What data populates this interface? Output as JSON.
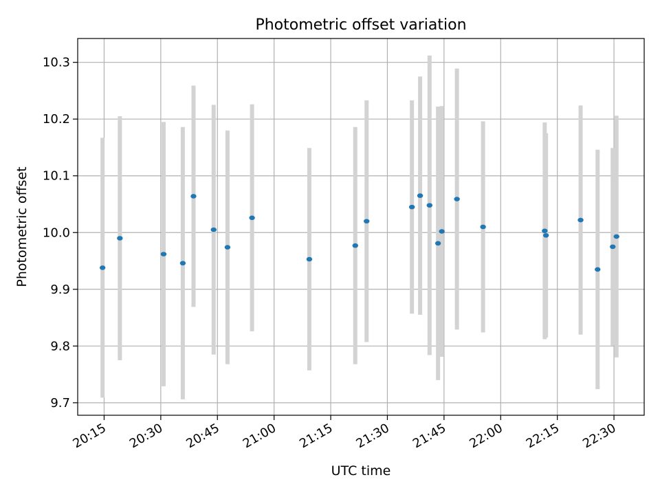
{
  "chart_data": {
    "type": "scatter",
    "title": "Photometric offset variation",
    "xlabel": "UTC time",
    "ylabel": "Photometric offset",
    "x_tick_labels": [
      "20:15",
      "20:30",
      "20:45",
      "21:00",
      "21:15",
      "21:30",
      "21:45",
      "22:00",
      "22:15",
      "22:30"
    ],
    "y_tick_labels": [
      "9.7",
      "9.8",
      "9.9",
      "10.0",
      "10.1",
      "10.2",
      "10.3"
    ],
    "x_ticks_minutes": [
      1215,
      1230,
      1245,
      1260,
      1275,
      1290,
      1305,
      1320,
      1335,
      1350
    ],
    "y_ticks": [
      9.7,
      9.8,
      9.9,
      10.0,
      10.1,
      10.2,
      10.3
    ],
    "xlim": [
      "20:08",
      "22:38"
    ],
    "ylim": [
      9.678,
      10.342
    ],
    "grid": true,
    "marker_color": "#1f77b4",
    "errorbar_color": "#d3d3d3",
    "points": [
      {
        "x": "20:14:35",
        "y": 9.938,
        "err": 0.229
      },
      {
        "x": "20:19:10",
        "y": 9.99,
        "err": 0.215
      },
      {
        "x": "20:30:45",
        "y": 9.962,
        "err": 0.233
      },
      {
        "x": "20:35:50",
        "y": 9.946,
        "err": 0.24
      },
      {
        "x": "20:38:40",
        "y": 10.064,
        "err": 0.195
      },
      {
        "x": "20:44:00",
        "y": 10.005,
        "err": 0.22
      },
      {
        "x": "20:47:40",
        "y": 9.974,
        "err": 0.206
      },
      {
        "x": "20:54:10",
        "y": 10.026,
        "err": 0.2
      },
      {
        "x": "21:09:20",
        "y": 9.953,
        "err": 0.196
      },
      {
        "x": "21:21:30",
        "y": 9.977,
        "err": 0.209
      },
      {
        "x": "21:24:30",
        "y": 10.02,
        "err": 0.213
      },
      {
        "x": "21:36:30",
        "y": 10.045,
        "err": 0.188
      },
      {
        "x": "21:38:40",
        "y": 10.065,
        "err": 0.21
      },
      {
        "x": "21:41:10",
        "y": 10.048,
        "err": 0.264
      },
      {
        "x": "21:43:25",
        "y": 9.981,
        "err": 0.241
      },
      {
        "x": "21:44:25",
        "y": 10.002,
        "err": 0.221
      },
      {
        "x": "21:48:25",
        "y": 10.059,
        "err": 0.23
      },
      {
        "x": "21:55:20",
        "y": 10.01,
        "err": 0.186
      },
      {
        "x": "22:11:40",
        "y": 10.003,
        "err": 0.191
      },
      {
        "x": "22:12:00",
        "y": 9.995,
        "err": 0.18
      },
      {
        "x": "22:21:10",
        "y": 10.022,
        "err": 0.202
      },
      {
        "x": "22:25:40",
        "y": 9.935,
        "err": 0.211
      },
      {
        "x": "22:29:40",
        "y": 9.975,
        "err": 0.174
      },
      {
        "x": "22:30:40",
        "y": 9.993,
        "err": 0.213
      }
    ]
  }
}
